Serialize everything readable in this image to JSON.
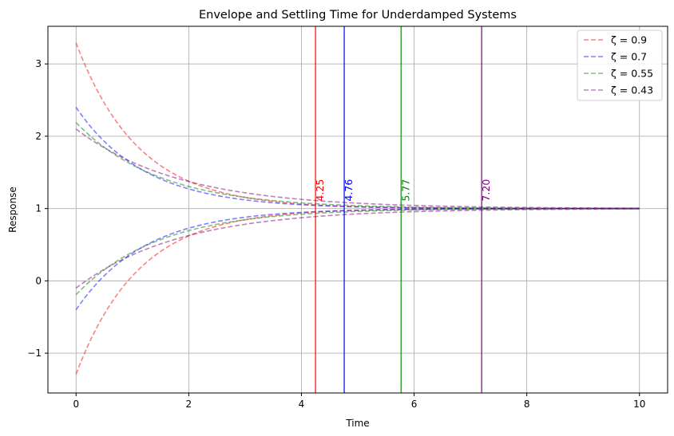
{
  "chart_data": {
    "type": "line",
    "title": "Envelope and Settling Time for Underdamped Systems",
    "xlabel": "Time",
    "ylabel": "Response",
    "xlim": [
      -0.5,
      10.5
    ],
    "ylim": [
      -1.55,
      3.52
    ],
    "x_ticks": [
      0,
      2,
      4,
      6,
      8,
      10
    ],
    "x_tick_labels": [
      "0",
      "2",
      "4",
      "6",
      "8",
      "10"
    ],
    "y_ticks": [
      -1,
      0,
      1,
      2,
      3
    ],
    "y_tick_labels": [
      "−1",
      "0",
      "1",
      "2",
      "3"
    ],
    "grid": true,
    "legend_position": "top-right",
    "x_range": [
      0,
      10
    ],
    "series": [
      {
        "name": "ζ = 0.9",
        "color": "#ff0000",
        "start_upper": 3.29,
        "start_lower": -1.29,
        "decay": 0.9,
        "settling_time": 4.25,
        "settling_label": "4.25"
      },
      {
        "name": "ζ = 0.7",
        "color": "#0000ff",
        "start_upper": 2.4,
        "start_lower": -0.4,
        "decay": 0.82,
        "settling_time": 4.76,
        "settling_label": "4.76"
      },
      {
        "name": "ζ = 0.55",
        "color": "#008000",
        "start_upper": 2.19,
        "start_lower": -0.19,
        "decay": 0.68,
        "settling_time": 5.77,
        "settling_label": "5.77"
      },
      {
        "name": "ζ = 0.43",
        "color": "#800080",
        "start_upper": 2.1,
        "start_lower": -0.1,
        "decay": 0.54,
        "settling_time": 7.2,
        "settling_label": "7.20"
      }
    ]
  }
}
